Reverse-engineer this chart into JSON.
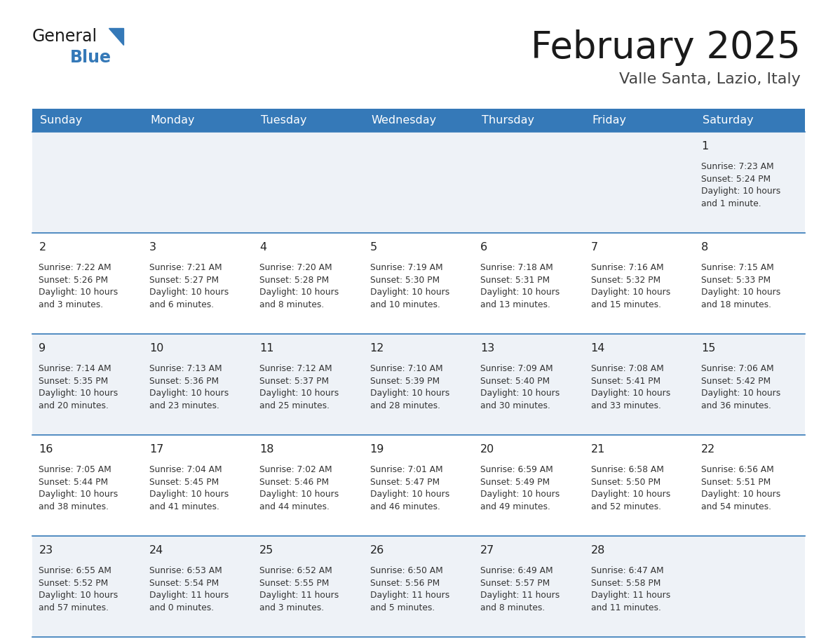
{
  "title": "February 2025",
  "subtitle": "Valle Santa, Lazio, Italy",
  "days_of_week": [
    "Sunday",
    "Monday",
    "Tuesday",
    "Wednesday",
    "Thursday",
    "Friday",
    "Saturday"
  ],
  "header_bg": "#3579b8",
  "header_text": "#ffffff",
  "odd_row_bg": "#eef2f7",
  "even_row_bg": "#ffffff",
  "grid_line_color": "#3579b8",
  "day_num_color": "#222222",
  "text_color": "#333333",
  "title_color": "#1a1a1a",
  "subtitle_color": "#444444",
  "logo_general_color": "#1a1a1a",
  "logo_blue_color": "#3579b8",
  "logo_triangle_color": "#3579b8",
  "calendar": [
    [
      {
        "day": null,
        "info": null
      },
      {
        "day": null,
        "info": null
      },
      {
        "day": null,
        "info": null
      },
      {
        "day": null,
        "info": null
      },
      {
        "day": null,
        "info": null
      },
      {
        "day": null,
        "info": null
      },
      {
        "day": 1,
        "info": "Sunrise: 7:23 AM\nSunset: 5:24 PM\nDaylight: 10 hours\nand 1 minute."
      }
    ],
    [
      {
        "day": 2,
        "info": "Sunrise: 7:22 AM\nSunset: 5:26 PM\nDaylight: 10 hours\nand 3 minutes."
      },
      {
        "day": 3,
        "info": "Sunrise: 7:21 AM\nSunset: 5:27 PM\nDaylight: 10 hours\nand 6 minutes."
      },
      {
        "day": 4,
        "info": "Sunrise: 7:20 AM\nSunset: 5:28 PM\nDaylight: 10 hours\nand 8 minutes."
      },
      {
        "day": 5,
        "info": "Sunrise: 7:19 AM\nSunset: 5:30 PM\nDaylight: 10 hours\nand 10 minutes."
      },
      {
        "day": 6,
        "info": "Sunrise: 7:18 AM\nSunset: 5:31 PM\nDaylight: 10 hours\nand 13 minutes."
      },
      {
        "day": 7,
        "info": "Sunrise: 7:16 AM\nSunset: 5:32 PM\nDaylight: 10 hours\nand 15 minutes."
      },
      {
        "day": 8,
        "info": "Sunrise: 7:15 AM\nSunset: 5:33 PM\nDaylight: 10 hours\nand 18 minutes."
      }
    ],
    [
      {
        "day": 9,
        "info": "Sunrise: 7:14 AM\nSunset: 5:35 PM\nDaylight: 10 hours\nand 20 minutes."
      },
      {
        "day": 10,
        "info": "Sunrise: 7:13 AM\nSunset: 5:36 PM\nDaylight: 10 hours\nand 23 minutes."
      },
      {
        "day": 11,
        "info": "Sunrise: 7:12 AM\nSunset: 5:37 PM\nDaylight: 10 hours\nand 25 minutes."
      },
      {
        "day": 12,
        "info": "Sunrise: 7:10 AM\nSunset: 5:39 PM\nDaylight: 10 hours\nand 28 minutes."
      },
      {
        "day": 13,
        "info": "Sunrise: 7:09 AM\nSunset: 5:40 PM\nDaylight: 10 hours\nand 30 minutes."
      },
      {
        "day": 14,
        "info": "Sunrise: 7:08 AM\nSunset: 5:41 PM\nDaylight: 10 hours\nand 33 minutes."
      },
      {
        "day": 15,
        "info": "Sunrise: 7:06 AM\nSunset: 5:42 PM\nDaylight: 10 hours\nand 36 minutes."
      }
    ],
    [
      {
        "day": 16,
        "info": "Sunrise: 7:05 AM\nSunset: 5:44 PM\nDaylight: 10 hours\nand 38 minutes."
      },
      {
        "day": 17,
        "info": "Sunrise: 7:04 AM\nSunset: 5:45 PM\nDaylight: 10 hours\nand 41 minutes."
      },
      {
        "day": 18,
        "info": "Sunrise: 7:02 AM\nSunset: 5:46 PM\nDaylight: 10 hours\nand 44 minutes."
      },
      {
        "day": 19,
        "info": "Sunrise: 7:01 AM\nSunset: 5:47 PM\nDaylight: 10 hours\nand 46 minutes."
      },
      {
        "day": 20,
        "info": "Sunrise: 6:59 AM\nSunset: 5:49 PM\nDaylight: 10 hours\nand 49 minutes."
      },
      {
        "day": 21,
        "info": "Sunrise: 6:58 AM\nSunset: 5:50 PM\nDaylight: 10 hours\nand 52 minutes."
      },
      {
        "day": 22,
        "info": "Sunrise: 6:56 AM\nSunset: 5:51 PM\nDaylight: 10 hours\nand 54 minutes."
      }
    ],
    [
      {
        "day": 23,
        "info": "Sunrise: 6:55 AM\nSunset: 5:52 PM\nDaylight: 10 hours\nand 57 minutes."
      },
      {
        "day": 24,
        "info": "Sunrise: 6:53 AM\nSunset: 5:54 PM\nDaylight: 11 hours\nand 0 minutes."
      },
      {
        "day": 25,
        "info": "Sunrise: 6:52 AM\nSunset: 5:55 PM\nDaylight: 11 hours\nand 3 minutes."
      },
      {
        "day": 26,
        "info": "Sunrise: 6:50 AM\nSunset: 5:56 PM\nDaylight: 11 hours\nand 5 minutes."
      },
      {
        "day": 27,
        "info": "Sunrise: 6:49 AM\nSunset: 5:57 PM\nDaylight: 11 hours\nand 8 minutes."
      },
      {
        "day": 28,
        "info": "Sunrise: 6:47 AM\nSunset: 5:58 PM\nDaylight: 11 hours\nand 11 minutes."
      },
      {
        "day": null,
        "info": null
      }
    ]
  ]
}
